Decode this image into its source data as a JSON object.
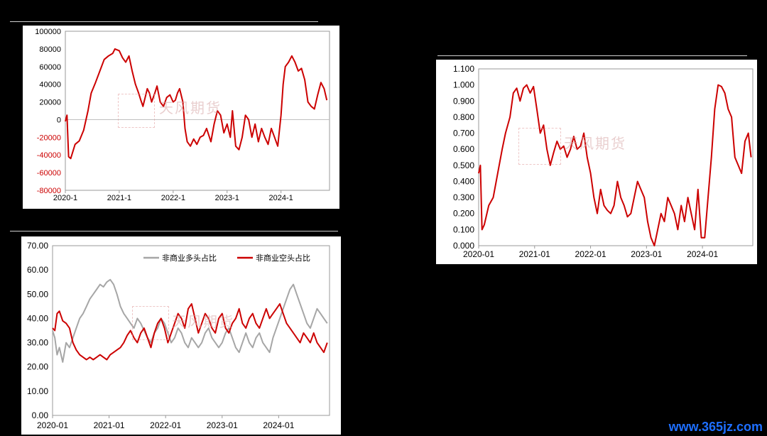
{
  "watermark": {
    "text": "天风期货"
  },
  "site_logo": "www.365jz.com",
  "chart_data": [
    {
      "id": "net",
      "type": "line",
      "title": "",
      "xlabel": "",
      "ylabel": "",
      "x_ticks": [
        "2020-1",
        "2021-1",
        "2022-1",
        "2023-1",
        "2024-1"
      ],
      "y_ticks": [
        "100000",
        "80000",
        "60000",
        "40000",
        "20000",
        "0",
        "-20000",
        "-40000",
        "-60000",
        "-80000"
      ],
      "ylim": [
        -80000,
        100000
      ],
      "negative_tick_color": "#cc0000",
      "grid": false,
      "series": [
        {
          "color": "#cc0000",
          "x": [
            2020.0,
            2020.03,
            2020.06,
            2020.1,
            2020.18,
            2020.26,
            2020.34,
            2020.42,
            2020.48,
            2020.56,
            2020.64,
            2020.72,
            2020.8,
            2020.88,
            2020.92,
            2021.0,
            2021.06,
            2021.12,
            2021.18,
            2021.24,
            2021.3,
            2021.36,
            2021.4,
            2021.44,
            2021.48,
            2021.52,
            2021.56,
            2021.6,
            2021.66,
            2021.7,
            2021.76,
            2021.82,
            2021.88,
            2021.94,
            2022.0,
            2022.04,
            2022.08,
            2022.12,
            2022.18,
            2022.22,
            2022.26,
            2022.32,
            2022.38,
            2022.44,
            2022.5,
            2022.56,
            2022.62,
            2022.7,
            2022.76,
            2022.82,
            2022.88,
            2022.94,
            2023.0,
            2023.06,
            2023.1,
            2023.16,
            2023.22,
            2023.28,
            2023.34,
            2023.4,
            2023.46,
            2023.52,
            2023.58,
            2023.64,
            2023.7,
            2023.76,
            2023.82,
            2023.88,
            2023.94,
            2024.0,
            2024.04,
            2024.08,
            2024.14,
            2024.2,
            2024.26,
            2024.32,
            2024.38,
            2024.44,
            2024.5,
            2024.56,
            2024.62,
            2024.68,
            2024.74,
            2024.8,
            2024.85
          ],
          "y": [
            -2000,
            5000,
            -42000,
            -44000,
            -28000,
            -24000,
            -12000,
            10000,
            30000,
            42000,
            55000,
            68000,
            72000,
            75000,
            80000,
            78000,
            70000,
            65000,
            72000,
            55000,
            40000,
            30000,
            22000,
            15000,
            25000,
            35000,
            30000,
            20000,
            30000,
            38000,
            20000,
            15000,
            25000,
            28000,
            20000,
            22000,
            30000,
            35000,
            20000,
            -10000,
            -25000,
            -30000,
            -22000,
            -28000,
            -20000,
            -18000,
            -10000,
            -25000,
            -5000,
            10000,
            5000,
            -15000,
            -5000,
            -20000,
            10000,
            -30000,
            -34000,
            -20000,
            5000,
            0,
            -20000,
            -5000,
            -25000,
            -10000,
            -20000,
            -28000,
            -10000,
            -20000,
            -30000,
            5000,
            40000,
            60000,
            65000,
            72000,
            65000,
            55000,
            58000,
            45000,
            20000,
            15000,
            12000,
            28000,
            42000,
            35000,
            22000
          ]
        }
      ]
    },
    {
      "id": "ratio",
      "type": "line",
      "title": "",
      "xlabel": "",
      "ylabel": "",
      "x_ticks": [
        "2020-01",
        "2021-01",
        "2022-01",
        "2023-01",
        "2024-01"
      ],
      "y_ticks": [
        "1.100",
        "1.000",
        "0.900",
        "0.800",
        "0.700",
        "0.600",
        "0.500",
        "0.400",
        "0.300",
        "0.200",
        "0.100",
        "0.000"
      ],
      "ylim": [
        0,
        1.1
      ],
      "grid": false,
      "series": [
        {
          "color": "#cc0000",
          "x": [
            2020.0,
            2020.03,
            2020.06,
            2020.1,
            2020.18,
            2020.26,
            2020.34,
            2020.42,
            2020.48,
            2020.56,
            2020.62,
            2020.68,
            2020.74,
            2020.8,
            2020.86,
            2020.92,
            2020.98,
            2021.04,
            2021.1,
            2021.16,
            2021.22,
            2021.28,
            2021.34,
            2021.4,
            2021.46,
            2021.52,
            2021.58,
            2021.64,
            2021.7,
            2021.76,
            2021.82,
            2021.88,
            2021.94,
            2022.0,
            2022.06,
            2022.12,
            2022.18,
            2022.24,
            2022.3,
            2022.36,
            2022.42,
            2022.48,
            2022.54,
            2022.6,
            2022.66,
            2022.72,
            2022.78,
            2022.84,
            2022.9,
            2022.96,
            2023.02,
            2023.08,
            2023.14,
            2023.2,
            2023.26,
            2023.32,
            2023.38,
            2023.44,
            2023.5,
            2023.56,
            2023.62,
            2023.68,
            2023.74,
            2023.8,
            2023.86,
            2023.92,
            2023.98,
            2024.04,
            2024.1,
            2024.16,
            2024.22,
            2024.28,
            2024.34,
            2024.4,
            2024.46,
            2024.52,
            2024.58,
            2024.64,
            2024.7,
            2024.76,
            2024.82,
            2024.87
          ],
          "y": [
            0.45,
            0.5,
            0.1,
            0.13,
            0.25,
            0.3,
            0.45,
            0.6,
            0.7,
            0.8,
            0.95,
            0.98,
            0.9,
            0.98,
            1.0,
            0.95,
            0.99,
            0.85,
            0.7,
            0.75,
            0.6,
            0.5,
            0.58,
            0.65,
            0.6,
            0.62,
            0.55,
            0.6,
            0.68,
            0.6,
            0.62,
            0.7,
            0.55,
            0.45,
            0.3,
            0.2,
            0.35,
            0.25,
            0.22,
            0.2,
            0.25,
            0.4,
            0.3,
            0.25,
            0.18,
            0.2,
            0.3,
            0.4,
            0.35,
            0.3,
            0.15,
            0.05,
            0.0,
            0.1,
            0.2,
            0.15,
            0.3,
            0.25,
            0.2,
            0.1,
            0.25,
            0.15,
            0.3,
            0.2,
            0.1,
            0.35,
            0.05,
            0.05,
            0.3,
            0.55,
            0.85,
            1.0,
            0.99,
            0.95,
            0.85,
            0.8,
            0.55,
            0.5,
            0.45,
            0.65,
            0.7,
            0.55
          ]
        }
      ]
    },
    {
      "id": "share",
      "type": "line",
      "title": "",
      "xlabel": "",
      "ylabel": "",
      "x_ticks": [
        "2020-01",
        "2021-01",
        "2022-01",
        "2023-01",
        "2024-01"
      ],
      "y_ticks": [
        "70.00",
        "60.00",
        "50.00",
        "40.00",
        "30.00",
        "20.00",
        "10.00",
        "0.00"
      ],
      "ylim": [
        0,
        70
      ],
      "grid": false,
      "legend_position": "top-right",
      "series": [
        {
          "name": "非商业多头占比",
          "color": "#a6a6a6",
          "x": [
            2020.0,
            2020.04,
            2020.08,
            2020.12,
            2020.18,
            2020.24,
            2020.3,
            2020.36,
            2020.42,
            2020.48,
            2020.54,
            2020.6,
            2020.66,
            2020.72,
            2020.78,
            2020.84,
            2020.9,
            2020.96,
            2021.02,
            2021.08,
            2021.14,
            2021.2,
            2021.26,
            2021.32,
            2021.38,
            2021.44,
            2021.5,
            2021.56,
            2021.62,
            2021.68,
            2021.74,
            2021.8,
            2021.86,
            2021.92,
            2021.98,
            2022.04,
            2022.1,
            2022.16,
            2022.22,
            2022.28,
            2022.34,
            2022.4,
            2022.46,
            2022.52,
            2022.58,
            2022.64,
            2022.7,
            2022.76,
            2022.82,
            2022.88,
            2022.94,
            2023.0,
            2023.06,
            2023.12,
            2023.18,
            2023.24,
            2023.3,
            2023.36,
            2023.42,
            2023.48,
            2023.54,
            2023.6,
            2023.66,
            2023.72,
            2023.78,
            2023.84,
            2023.9,
            2023.96,
            2024.02,
            2024.08,
            2024.14,
            2024.2,
            2024.26,
            2024.32,
            2024.38,
            2024.44,
            2024.5,
            2024.56,
            2024.62,
            2024.68,
            2024.74,
            2024.8,
            2024.86
          ],
          "y": [
            35,
            32,
            25,
            28,
            22,
            30,
            28,
            32,
            36,
            40,
            42,
            45,
            48,
            50,
            52,
            54,
            53,
            55,
            56,
            54,
            50,
            45,
            42,
            40,
            38,
            36,
            40,
            38,
            35,
            32,
            30,
            34,
            36,
            40,
            38,
            34,
            30,
            32,
            36,
            34,
            30,
            28,
            32,
            30,
            28,
            30,
            34,
            36,
            32,
            30,
            28,
            30,
            34,
            36,
            32,
            28,
            26,
            30,
            34,
            30,
            28,
            32,
            34,
            30,
            28,
            26,
            32,
            36,
            40,
            44,
            48,
            52,
            54,
            50,
            46,
            42,
            38,
            36,
            40,
            44,
            42,
            40,
            38
          ]
        },
        {
          "name": "非商业空头占比",
          "color": "#cc0000",
          "x": [
            2020.0,
            2020.04,
            2020.08,
            2020.12,
            2020.18,
            2020.24,
            2020.3,
            2020.36,
            2020.42,
            2020.48,
            2020.54,
            2020.6,
            2020.66,
            2020.72,
            2020.78,
            2020.84,
            2020.9,
            2020.96,
            2021.02,
            2021.08,
            2021.14,
            2021.2,
            2021.26,
            2021.32,
            2021.38,
            2021.44,
            2021.5,
            2021.56,
            2021.62,
            2021.68,
            2021.74,
            2021.8,
            2021.86,
            2021.92,
            2021.98,
            2022.04,
            2022.1,
            2022.16,
            2022.22,
            2022.28,
            2022.34,
            2022.4,
            2022.46,
            2022.52,
            2022.58,
            2022.64,
            2022.7,
            2022.76,
            2022.82,
            2022.88,
            2022.94,
            2023.0,
            2023.06,
            2023.12,
            2023.18,
            2023.24,
            2023.3,
            2023.36,
            2023.42,
            2023.48,
            2023.54,
            2023.6,
            2023.66,
            2023.72,
            2023.78,
            2023.84,
            2023.9,
            2023.96,
            2024.02,
            2024.08,
            2024.14,
            2024.2,
            2024.26,
            2024.32,
            2024.38,
            2024.44,
            2024.5,
            2024.56,
            2024.62,
            2024.68,
            2024.74,
            2024.8,
            2024.86
          ],
          "y": [
            36,
            35,
            42,
            43,
            39,
            38,
            36,
            30,
            27,
            25,
            24,
            23,
            24,
            23,
            24,
            25,
            24,
            23,
            25,
            26,
            27,
            28,
            30,
            33,
            35,
            32,
            30,
            34,
            36,
            32,
            28,
            34,
            38,
            40,
            36,
            30,
            34,
            38,
            42,
            40,
            36,
            44,
            46,
            40,
            34,
            38,
            42,
            40,
            36,
            34,
            40,
            42,
            36,
            34,
            38,
            40,
            44,
            38,
            36,
            40,
            42,
            38,
            36,
            40,
            44,
            40,
            42,
            44,
            46,
            42,
            38,
            36,
            34,
            32,
            30,
            34,
            32,
            30,
            34,
            30,
            28,
            26,
            30
          ]
        }
      ]
    }
  ]
}
